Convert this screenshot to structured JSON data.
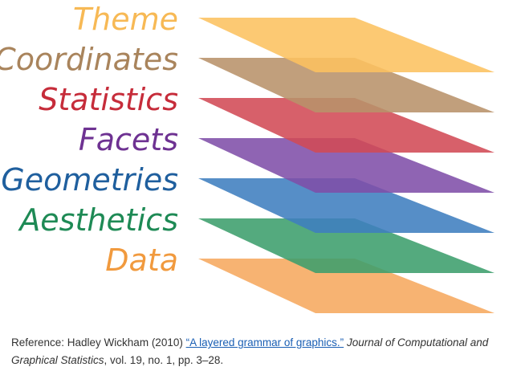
{
  "diagram": {
    "layers": [
      {
        "label": "Data",
        "color": "#f6a85f"
      },
      {
        "label": "Aesthetics",
        "color": "#3c9e6c"
      },
      {
        "label": "Geometries",
        "color": "#3f7ebf"
      },
      {
        "label": "Facets",
        "color": "#7f4fa8"
      },
      {
        "label": "Statistics",
        "color": "#d14a55"
      },
      {
        "label": "Coordinates",
        "color": "#b8926a"
      },
      {
        "label": "Theme",
        "color": "#fcc260"
      }
    ],
    "label_colors": {
      "Theme": "#f7b955",
      "Coordinates": "#a9845c",
      "Statistics": "#c62c3a",
      "Facets": "#6e3292",
      "Geometries": "#1f5f9e",
      "Aesthetics": "#1e8a55",
      "Data": "#f19a3e"
    }
  },
  "reference": {
    "prefix": "Reference: Hadley Wickham (2010) ",
    "link_text": "“A layered grammar of graphics.”",
    "space": " ",
    "journal": "Journal of Computational and Graphical Statistics",
    "suffix": ", vol. 19, no. 1, pp. 3–28."
  }
}
